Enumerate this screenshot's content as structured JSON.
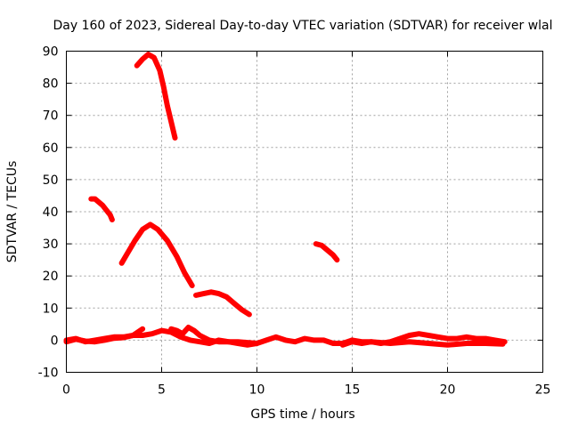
{
  "chart_data": {
    "type": "line",
    "title": "Day 160 of 2023, Sidereal Day-to-day VTEC variation (SDTVAR) for receiver wlal",
    "xlabel": "GPS time / hours",
    "ylabel": "SDTVAR / TECUs",
    "xlim": [
      0,
      25
    ],
    "ylim": [
      -10,
      90
    ],
    "xticks": [
      0,
      5,
      10,
      15,
      20,
      25
    ],
    "yticks": [
      -10,
      0,
      10,
      20,
      30,
      40,
      50,
      60,
      70,
      80,
      90
    ],
    "grid": true,
    "color": "#ff0000",
    "series": [
      {
        "name": "arc-high-peak",
        "x": [
          3.7,
          4.0,
          4.3,
          4.6,
          4.9,
          5.1,
          5.3,
          5.5,
          5.7
        ],
        "y": [
          85.5,
          87.5,
          89,
          88,
          84,
          79,
          73,
          68,
          63
        ]
      },
      {
        "name": "arc-left-44",
        "x": [
          1.3,
          1.5,
          1.7,
          1.9,
          2.1,
          2.3,
          2.4
        ],
        "y": [
          44,
          44,
          43,
          42,
          40.5,
          39,
          37.5
        ]
      },
      {
        "name": "arc-peak-36",
        "x": [
          2.9,
          3.2,
          3.6,
          4.0,
          4.4,
          4.8,
          5.3,
          5.8,
          6.2,
          6.6
        ],
        "y": [
          24,
          27,
          31,
          34.5,
          36,
          34.5,
          31,
          26,
          21,
          17
        ]
      },
      {
        "name": "arc-mid-15",
        "x": [
          6.8,
          7.2,
          7.6,
          8.0,
          8.4,
          8.8,
          9.2,
          9.6
        ],
        "y": [
          14,
          14.5,
          15,
          14.5,
          13.5,
          11.5,
          9.5,
          8
        ]
      },
      {
        "name": "arc-right-30",
        "x": [
          13.1,
          13.4,
          13.7,
          14.0,
          14.2
        ],
        "y": [
          30,
          29.5,
          28,
          26.5,
          25
        ]
      },
      {
        "name": "base-a",
        "x": [
          0,
          0.5,
          1.0,
          1.5,
          2.0,
          2.5,
          3.0,
          3.5,
          4.0,
          4.5,
          5.0,
          5.5,
          6.0,
          6.5,
          7.0,
          7.5,
          8.0,
          8.5,
          9.0,
          9.5,
          10.0,
          10.5,
          11.0,
          11.5,
          12.0,
          12.5,
          13.0,
          13.5,
          14.0,
          14.5,
          15.0
        ],
        "y": [
          0,
          0.5,
          -0.5,
          0,
          0.5,
          1,
          1,
          1.5,
          1.5,
          2,
          3,
          2.5,
          1,
          0,
          -0.5,
          -1,
          0,
          -0.5,
          -1,
          -1.5,
          -1,
          0,
          1,
          0,
          -0.5,
          0.5,
          0,
          0,
          -1,
          -1,
          0
        ]
      },
      {
        "name": "base-b",
        "x": [
          0,
          0.5,
          1.0,
          1.5,
          2.0,
          2.5,
          3.0,
          3.5,
          4.0
        ],
        "y": [
          -0.5,
          0.3,
          -0.3,
          -0.5,
          0,
          0.6,
          0.8,
          1.5,
          3.5
        ]
      },
      {
        "name": "base-c",
        "x": [
          5.5,
          5.8,
          6.1,
          6.4,
          6.7,
          7.0,
          7.5,
          8.0,
          9.0,
          10.0
        ],
        "y": [
          3.5,
          3,
          2,
          4,
          3,
          1.5,
          0,
          -0.5,
          -0.5,
          -1
        ]
      },
      {
        "name": "base-d",
        "x": [
          15.0,
          15.5,
          16.0,
          16.5,
          17.0,
          17.5,
          18.0,
          18.5,
          19.0,
          19.5,
          20.0,
          20.5,
          21.0,
          21.5,
          22.0,
          22.5,
          23.0
        ],
        "y": [
          0,
          -0.5,
          -0.5,
          -1,
          -0.5,
          0.5,
          1.5,
          2,
          1.5,
          1,
          0.5,
          0.5,
          1,
          0.5,
          0.5,
          0,
          -0.5
        ]
      },
      {
        "name": "base-e",
        "x": [
          14.5,
          15.0,
          15.5,
          16.0,
          17.0,
          18.0,
          19.0,
          20.0,
          21.0,
          22.0,
          22.9
        ],
        "y": [
          -1.5,
          -0.5,
          -1,
          -0.5,
          -1,
          -0.5,
          -1,
          -1.5,
          -1,
          -1,
          -1.2
        ]
      }
    ]
  }
}
